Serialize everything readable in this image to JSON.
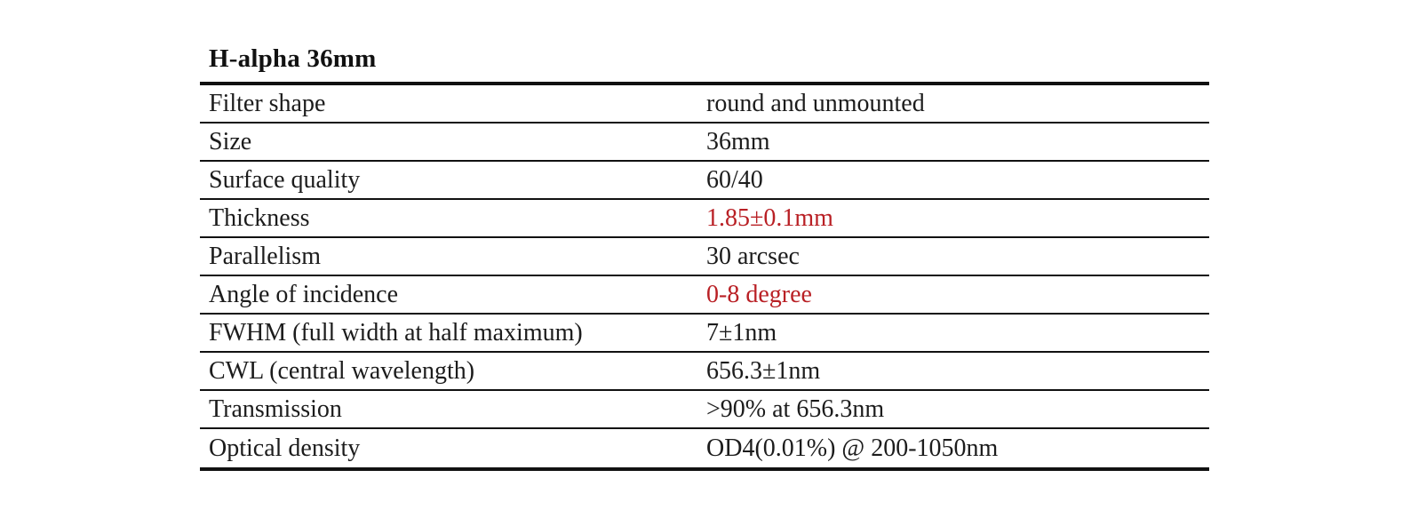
{
  "page": {
    "background": "#ffffff",
    "text_color": "#1c1c1c",
    "border_color": "#111111"
  },
  "table": {
    "title": "H-alpha 36mm",
    "colors": {
      "highlight": "#b92025"
    },
    "rows": [
      {
        "label": "Filter shape",
        "value": "round and unmounted",
        "highlight": false
      },
      {
        "label": "Size",
        "value": "36mm",
        "highlight": false
      },
      {
        "label": "Surface quality",
        "value": "60/40",
        "highlight": false
      },
      {
        "label": "Thickness",
        "value": "1.85±0.1mm",
        "highlight": true
      },
      {
        "label": "Parallelism",
        "value": "30 arcsec",
        "highlight": false
      },
      {
        "label": "Angle of incidence",
        "value": "0-8 degree",
        "highlight": true
      },
      {
        "label": "FWHM (full width at half maximum)",
        "value": "7±1nm",
        "highlight": false
      },
      {
        "label": "CWL (central wavelength)",
        "value": "656.3±1nm",
        "highlight": false
      },
      {
        "label": "Transmission",
        "value": ">90% at 656.3nm",
        "highlight": false
      },
      {
        "label": "Optical density",
        "value": "OD4(0.01%) @ 200-1050nm",
        "highlight": false
      }
    ]
  }
}
